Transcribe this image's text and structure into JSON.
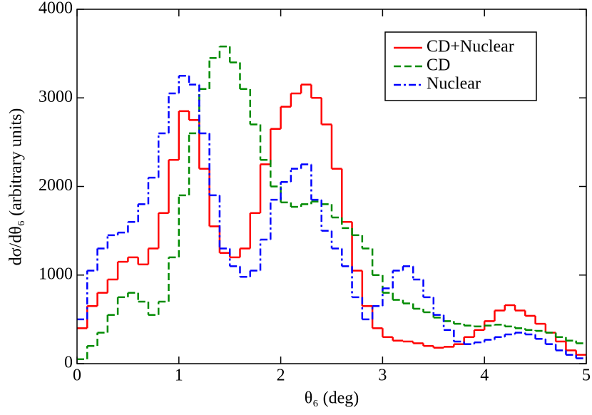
{
  "chart_data": {
    "type": "histogram",
    "x_label": "θ₆ (deg)",
    "y_label": "dσ/dθ₆ (arbitrary units)",
    "bins": [
      0,
      0.1,
      0.2,
      0.3,
      0.4,
      0.5,
      0.6,
      0.7,
      0.8,
      0.9,
      1,
      1.1,
      1.2,
      1.3,
      1.4,
      1.5,
      1.6,
      1.7,
      1.8,
      1.9,
      2,
      2.1,
      2.2,
      2.3,
      2.4,
      2.5,
      2.6,
      2.7,
      2.8,
      2.9,
      3,
      3.1,
      3.2,
      3.3,
      3.4,
      3.5,
      3.6,
      3.7,
      3.8,
      3.9,
      4,
      4.1,
      4.2,
      4.3,
      4.4,
      4.5,
      4.6,
      4.7,
      4.8,
      4.9,
      5
    ],
    "series": [
      {
        "name": "CD+Nuclear",
        "color": "#ff0000",
        "linestyle": "solid",
        "values": [
          400,
          650,
          800,
          950,
          1150,
          1200,
          1120,
          1300,
          1700,
          2300,
          2850,
          2750,
          2200,
          1550,
          1250,
          1200,
          1300,
          1700,
          2250,
          2650,
          2900,
          3050,
          3150,
          3000,
          2700,
          2200,
          1600,
          1050,
          650,
          400,
          300,
          260,
          250,
          230,
          200,
          180,
          190,
          220,
          300,
          380,
          480,
          600,
          660,
          600,
          540,
          450,
          350,
          250,
          150,
          100
        ]
      },
      {
        "name": "CD",
        "color": "#008b00",
        "linestyle": "dashed",
        "values": [
          50,
          200,
          350,
          550,
          750,
          800,
          700,
          550,
          700,
          1200,
          1900,
          2600,
          3100,
          3450,
          3580,
          3400,
          3100,
          2700,
          2300,
          2000,
          1820,
          1770,
          1800,
          1830,
          1800,
          1650,
          1530,
          1450,
          1300,
          1000,
          800,
          720,
          680,
          620,
          580,
          520,
          480,
          450,
          430,
          420,
          430,
          440,
          420,
          400,
          380,
          370,
          350,
          300,
          260,
          230
        ]
      },
      {
        "name": "Nuclear",
        "color": "#0000ff",
        "linestyle": "dashdot",
        "values": [
          500,
          1050,
          1300,
          1450,
          1480,
          1600,
          1800,
          2100,
          2600,
          3050,
          3250,
          3150,
          2600,
          1900,
          1300,
          1100,
          980,
          1050,
          1400,
          1850,
          2050,
          2200,
          2250,
          1850,
          1500,
          1300,
          1100,
          750,
          500,
          650,
          850,
          1050,
          1100,
          950,
          750,
          550,
          380,
          250,
          220,
          240,
          270,
          300,
          330,
          350,
          330,
          280,
          220,
          150,
          100,
          60
        ]
      }
    ],
    "xlim": [
      0,
      5
    ],
    "xticks": [
      0,
      1,
      2,
      3,
      4,
      5
    ],
    "ylim": [
      0,
      4000
    ],
    "yticks": [
      0,
      1000,
      2000,
      3000,
      4000
    ],
    "legend": "upper right"
  }
}
